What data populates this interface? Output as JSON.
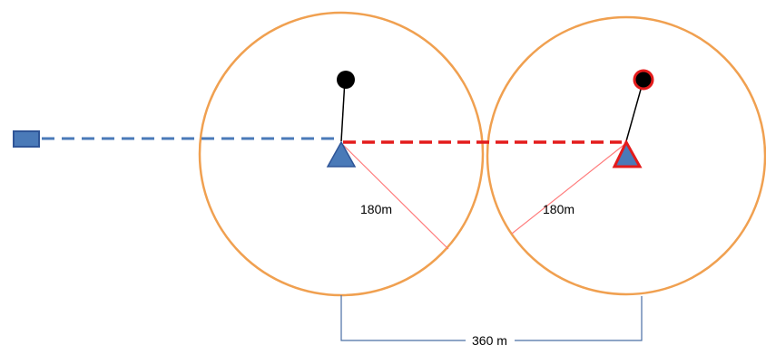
{
  "labels": {
    "radius_left": "180m",
    "radius_right": "180m",
    "distance": "360 m"
  },
  "colors": {
    "circle_stroke": "#f0a050",
    "blue_fill": "#4a7ab8",
    "blue_stroke": "#2f5597",
    "red": "#e31b1b",
    "radius_line": "#ff7c7c",
    "dimension_line": "#4a6fa5",
    "black": "#000000"
  },
  "elements": {
    "source_node": "rectangle",
    "left_base": "blue-triangle",
    "right_base": "red-triangle",
    "left_mast_top": "black-dot",
    "right_mast_top": "black-dot-red-outline"
  }
}
